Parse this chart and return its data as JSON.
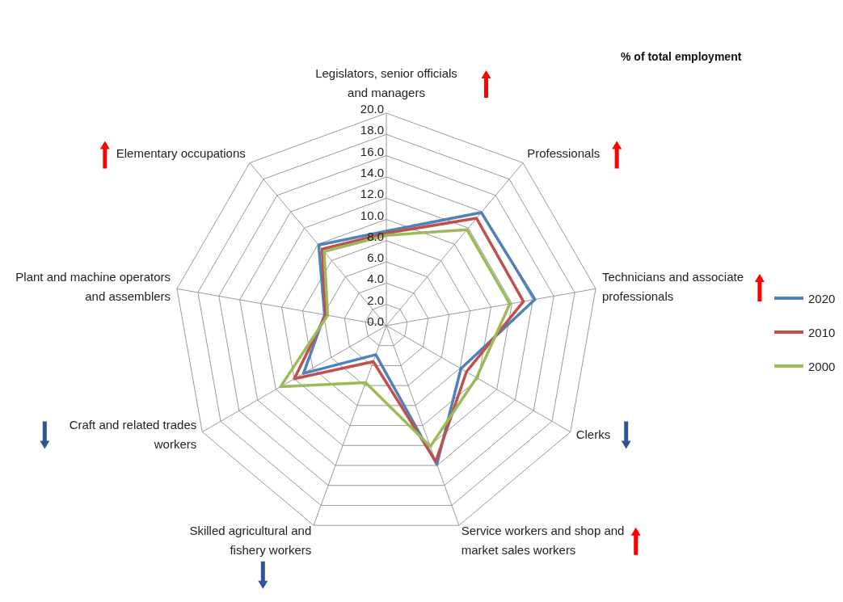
{
  "chart_data": {
    "type": "radar",
    "title": "% of total employment",
    "categories": [
      "Legislators, senior officials and managers",
      "Professionals",
      "Technicians and associate professionals",
      "Clerks",
      "Service workers and shop and market sales workers",
      "Skilled agricultural and fishery workers",
      "Craft and related trades workers",
      "Plant and machine operators and assemblers",
      "Elementary occupations"
    ],
    "series": [
      {
        "name": "2020",
        "color": "#4f81bd",
        "values": [
          8.9,
          13.9,
          14.2,
          8.1,
          13.9,
          2.9,
          9.0,
          5.9,
          9.9
        ]
      },
      {
        "name": "2010",
        "color": "#c0504d",
        "values": [
          8.7,
          13.2,
          13.1,
          8.7,
          13.6,
          3.6,
          10.0,
          5.8,
          9.4
        ]
      },
      {
        "name": "2000",
        "color": "#9bbb59",
        "values": [
          8.5,
          11.8,
          11.8,
          9.8,
          12.1,
          5.7,
          11.5,
          5.6,
          9.1
        ]
      }
    ],
    "ylim": [
      0,
      20
    ],
    "yticks": [
      {
        "value": 0,
        "label": "0.0"
      },
      {
        "value": 2,
        "label": "2.0"
      },
      {
        "value": 4,
        "label": "4.0"
      },
      {
        "value": 6,
        "label": "6.0"
      },
      {
        "value": 8,
        "label": "8.0"
      },
      {
        "value": 10,
        "label": "10.0"
      },
      {
        "value": 12,
        "label": "12.0"
      },
      {
        "value": 14,
        "label": "14.0"
      },
      {
        "value": 16,
        "label": "16.0"
      },
      {
        "value": 18,
        "label": "18.0"
      },
      {
        "value": 20,
        "label": "20.0"
      }
    ],
    "grid": true,
    "legend": "right"
  }
}
